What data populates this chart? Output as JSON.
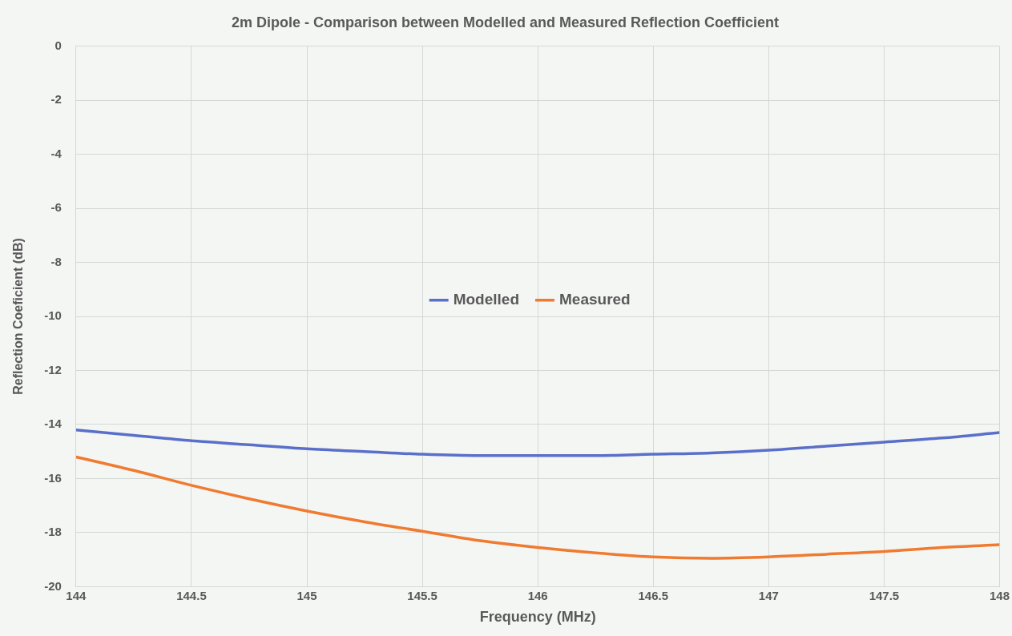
{
  "chart_data": {
    "type": "line",
    "title": "2m Dipole - Comparison between Modelled and Measured Reflection Coefficient",
    "xlabel": "Frequency (MHz)",
    "ylabel": "Reflection Coeficient (dB)",
    "x": [
      144,
      144.25,
      144.5,
      144.75,
      145,
      145.25,
      145.5,
      145.75,
      146,
      146.25,
      146.5,
      146.75,
      147,
      147.25,
      147.5,
      147.75,
      148
    ],
    "series": [
      {
        "name": "Modelled",
        "color": "#5a6fc9",
        "values": [
          -14.2,
          -14.4,
          -14.6,
          -14.75,
          -14.9,
          -15.0,
          -15.1,
          -15.15,
          -15.15,
          -15.15,
          -15.1,
          -15.05,
          -14.95,
          -14.8,
          -14.65,
          -14.5,
          -14.3
        ]
      },
      {
        "name": "Measured",
        "color": "#f07a30",
        "values": [
          -15.2,
          -15.7,
          -16.25,
          -16.75,
          -17.2,
          -17.6,
          -17.95,
          -18.3,
          -18.55,
          -18.75,
          -18.9,
          -18.95,
          -18.9,
          -18.8,
          -18.7,
          -18.55,
          -18.45
        ]
      }
    ],
    "xlim": [
      144,
      148
    ],
    "xticks": [
      144,
      144.5,
      145,
      145.5,
      146,
      146.5,
      147,
      147.5,
      148
    ],
    "ylim": [
      -20,
      0
    ],
    "yticks": [
      -20,
      -18,
      -16,
      -14,
      -12,
      -10,
      -8,
      -6,
      -4,
      -2,
      0
    ],
    "grid": true,
    "legend": "center",
    "marker": "none",
    "line_style": "solid"
  }
}
